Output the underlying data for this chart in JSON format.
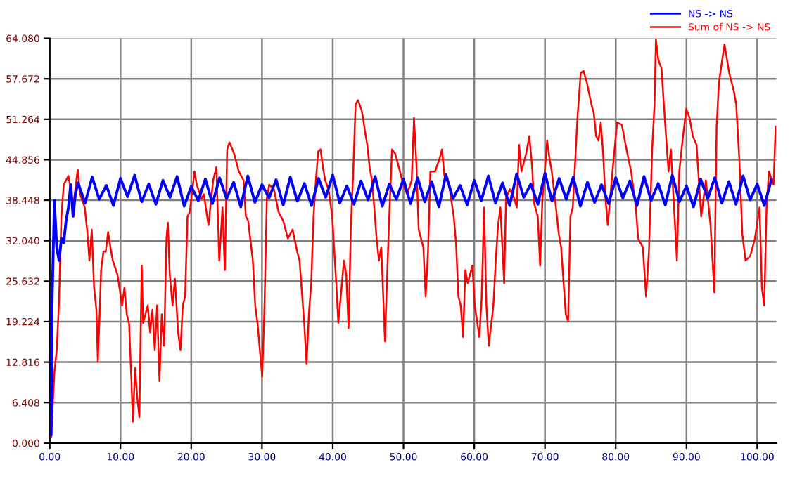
{
  "chart_data": {
    "type": "line",
    "xlim": [
      0,
      102.7
    ],
    "xticks": [
      {
        "value": 0,
        "label": "0.00"
      },
      {
        "value": 10,
        "label": "10.00"
      },
      {
        "value": 20,
        "label": "20.00"
      },
      {
        "value": 30,
        "label": "30.00"
      },
      {
        "value": 40,
        "label": "40.00"
      },
      {
        "value": 50,
        "label": "50.00"
      },
      {
        "value": 60,
        "label": "60.00"
      },
      {
        "value": 70,
        "label": "70.00"
      },
      {
        "value": 80,
        "label": "80.00"
      },
      {
        "value": 90,
        "label": "90.00"
      },
      {
        "value": 100,
        "label": "100.00"
      }
    ],
    "ylim": [
      0,
      64.08
    ],
    "yticks": [
      {
        "value": 0,
        "label": "0.000"
      },
      {
        "value": 6.408,
        "label": "6.408"
      },
      {
        "value": 12.816,
        "label": "12.816"
      },
      {
        "value": 19.224,
        "label": "19.224"
      },
      {
        "value": 25.632,
        "label": "25.632"
      },
      {
        "value": 32.04,
        "label": "32.040"
      },
      {
        "value": 38.448,
        "label": "38.448"
      },
      {
        "value": 44.856,
        "label": "44.856"
      },
      {
        "value": 51.264,
        "label": "51.264"
      },
      {
        "value": 57.672,
        "label": "57.672"
      },
      {
        "value": 64.08,
        "label": "64.080"
      }
    ],
    "grid": true,
    "legend": "top right",
    "series": [
      {
        "name": "NS -> NS",
        "color": "#0000ff",
        "x": [
          0.2,
          0.33,
          0.66,
          0.99,
          1.32,
          1.65,
          1.98,
          2.31,
          2.64,
          2.97,
          3.3,
          3.63,
          4,
          5,
          6,
          7,
          8,
          9,
          10,
          11,
          12,
          13,
          14,
          15,
          16,
          17,
          18,
          19,
          20,
          21,
          22,
          23,
          24,
          25,
          26,
          27,
          28,
          29,
          30,
          31,
          32,
          33,
          34,
          35,
          36,
          37,
          38,
          39,
          40,
          41,
          42,
          43,
          44,
          45,
          46,
          47,
          48,
          49,
          50,
          51,
          52,
          53,
          54,
          55,
          56,
          57,
          58,
          59,
          60,
          61,
          62,
          63,
          64,
          65,
          66,
          67,
          68,
          69,
          70,
          71,
          72,
          73,
          74,
          75,
          76,
          77,
          78,
          79,
          80,
          81,
          82,
          83,
          84,
          85,
          86,
          87,
          88,
          89,
          90,
          91,
          92,
          93,
          94,
          95,
          96,
          97,
          98,
          99,
          100,
          101,
          102
        ],
        "values": [
          1.3,
          21.8,
          38.4,
          31.0,
          28.9,
          32.4,
          31.7,
          35.2,
          37.3,
          40.9,
          35.9,
          39.4,
          41.2,
          38.0,
          42.1,
          38.6,
          40.8,
          37.6,
          41.9,
          39.0,
          42.4,
          38.2,
          41.0,
          37.8,
          41.6,
          38.9,
          42.2,
          37.5,
          40.6,
          38.4,
          41.8,
          37.9,
          42.0,
          38.7,
          41.3,
          37.4,
          42.3,
          38.1,
          40.9,
          38.8,
          41.7,
          37.7,
          42.1,
          38.3,
          41.1,
          37.6,
          41.9,
          38.9,
          42.4,
          38.0,
          40.7,
          37.8,
          41.5,
          38.5,
          42.2,
          37.5,
          41.0,
          38.6,
          41.8,
          37.9,
          42.0,
          38.2,
          41.4,
          37.4,
          42.5,
          38.7,
          40.8,
          37.7,
          41.6,
          38.4,
          42.3,
          38.0,
          41.2,
          37.6,
          42.6,
          38.9,
          41.0,
          37.8,
          42.7,
          38.3,
          41.9,
          38.6,
          42.1,
          37.5,
          41.3,
          38.1,
          40.9,
          37.9,
          42.0,
          38.8,
          41.5,
          37.6,
          42.2,
          38.4,
          41.1,
          37.7,
          42.4,
          38.2,
          40.7,
          37.4,
          41.8,
          38.7,
          42.0,
          38.0,
          41.4,
          37.8,
          42.3,
          38.5,
          41.0,
          37.6,
          41.7
        ]
      },
      {
        "name": "Sum of NS -> NS",
        "color": "#ff0000",
        "x": [
          0.2,
          0.66,
          0.99,
          1.32,
          1.65,
          1.98,
          2.64,
          2.97,
          3.3,
          3.96,
          4.29,
          4.95,
          5.28,
          5.61,
          5.94,
          6.27,
          6.6,
          6.8,
          7.06,
          7.26,
          7.59,
          7.92,
          8.25,
          8.58,
          8.91,
          9.57,
          10.23,
          10.56,
          10.89,
          11.22,
          11.55,
          11.75,
          12.08,
          12.34,
          12.67,
          13.0,
          13.2,
          13.53,
          13.86,
          14.19,
          14.52,
          14.85,
          15.18,
          15.51,
          15.84,
          16.17,
          16.5,
          16.7,
          16.96,
          17.36,
          17.69,
          18.15,
          18.48,
          18.81,
          19.14,
          19.47,
          19.8,
          20.46,
          20.79,
          21.45,
          21.78,
          22.44,
          23.1,
          23.56,
          23.96,
          24.42,
          24.75,
          25.08,
          25.41,
          26.07,
          26.73,
          27.39,
          27.72,
          28.05,
          28.71,
          29.04,
          29.37,
          29.7,
          30.03,
          30.36,
          30.69,
          31.02,
          31.68,
          32.34,
          33.0,
          33.66,
          34.32,
          34.98,
          35.31,
          35.97,
          36.3,
          36.63,
          36.96,
          37.29,
          37.62,
          37.95,
          38.28,
          38.61,
          38.94,
          39.4,
          39.93,
          40.46,
          40.79,
          41.25,
          41.58,
          41.91,
          42.24,
          42.57,
          42.9,
          43.23,
          43.56,
          44.03,
          44.29,
          44.55,
          44.88,
          45.21,
          45.54,
          45.87,
          46.2,
          46.53,
          46.86,
          47.19,
          47.39,
          47.72,
          47.99,
          48.38,
          48.84,
          49.5,
          49.97,
          50.5,
          51.16,
          51.49,
          51.82,
          52.15,
          52.81,
          53.14,
          53.47,
          53.8,
          54.46,
          55.12,
          55.45,
          55.78,
          56.44,
          57.1,
          57.43,
          57.76,
          58.09,
          58.42,
          58.75,
          59.08,
          59.74,
          60.07,
          60.73,
          61.06,
          61.39,
          61.72,
          62.05,
          62.71,
          63.04,
          63.37,
          63.7,
          64.23,
          64.49,
          65.02,
          65.68,
          66.01,
          66.34,
          66.67,
          67.33,
          67.79,
          68.19,
          68.45,
          68.98,
          69.31,
          69.64,
          69.97,
          70.3,
          70.63,
          70.96,
          71.62,
          71.95,
          72.28,
          72.94,
          73.27,
          73.6,
          73.93,
          74.59,
          75.05,
          75.45,
          75.91,
          76.57,
          76.9,
          77.23,
          77.56,
          77.89,
          78.22,
          78.55,
          78.88,
          79.54,
          80.2,
          80.86,
          81.52,
          82.18,
          82.84,
          83.17,
          83.83,
          84.29,
          84.69,
          85.15,
          85.48,
          85.68,
          86.01,
          86.47,
          86.8,
          87.46,
          87.79,
          88.45,
          88.65,
          88.98,
          89.44,
          89.97,
          90.43,
          90.89,
          91.42,
          92.08,
          92.74,
          93.4,
          93.93,
          94.26,
          94.59,
          95.05,
          95.38,
          96.04,
          96.7,
          97.03,
          97.49,
          97.89,
          98.35,
          99.01,
          99.67,
          100.33,
          100.66,
          100.99,
          101.32,
          101.65,
          102.31,
          102.6
        ],
        "values": [
          0.9,
          11.2,
          14.7,
          22.5,
          35.9,
          40.9,
          42.3,
          40.2,
          37.3,
          43.3,
          39.4,
          37.3,
          33.8,
          28.9,
          33.8,
          24.6,
          21.1,
          12.9,
          20.4,
          27.4,
          30.3,
          30.3,
          33.4,
          31.0,
          28.9,
          26.7,
          21.8,
          24.6,
          20.4,
          18.9,
          9.8,
          3.4,
          11.9,
          7.6,
          4.1,
          28.1,
          19.0,
          20.4,
          21.8,
          17.5,
          21.1,
          14.7,
          21.8,
          9.8,
          20.4,
          15.4,
          32.4,
          34.9,
          26.7,
          21.8,
          26.0,
          17.5,
          14.7,
          21.8,
          23.2,
          35.9,
          36.6,
          43.0,
          40.9,
          38.7,
          39.4,
          34.5,
          41.6,
          43.7,
          28.9,
          37.3,
          27.4,
          46.5,
          47.6,
          45.8,
          43.0,
          41.6,
          35.9,
          35.2,
          28.9,
          21.8,
          19.0,
          14.7,
          10.5,
          21.8,
          38.7,
          40.9,
          40.2,
          36.6,
          35.2,
          32.4,
          33.8,
          30.3,
          28.9,
          19.0,
          12.6,
          20.4,
          25.3,
          35.9,
          41.6,
          46.2,
          46.5,
          43.7,
          41.6,
          40.2,
          35.9,
          26.0,
          19.0,
          24.6,
          28.9,
          26.7,
          18.2,
          34.5,
          43.0,
          53.6,
          54.3,
          52.9,
          51.5,
          49.4,
          47.2,
          43.7,
          41.6,
          37.3,
          32.4,
          28.9,
          31.0,
          21.8,
          16.1,
          27.4,
          35.9,
          46.5,
          45.8,
          43.0,
          40.9,
          39.4,
          41.6,
          51.5,
          44.4,
          33.8,
          31.0,
          23.2,
          30.3,
          43.0,
          43.0,
          45.1,
          46.5,
          42.3,
          40.9,
          35.9,
          31.7,
          23.2,
          21.8,
          16.8,
          27.4,
          25.3,
          28.1,
          21.8,
          16.8,
          23.2,
          37.3,
          21.8,
          15.4,
          21.8,
          28.9,
          34.5,
          37.3,
          25.3,
          38.7,
          40.2,
          38.7,
          37.3,
          47.2,
          43.0,
          45.8,
          48.6,
          43.7,
          38.0,
          35.9,
          28.1,
          38.7,
          43.0,
          47.9,
          45.1,
          43.0,
          36.6,
          33.1,
          31.0,
          20.4,
          19.3,
          35.9,
          37.3,
          51.5,
          58.6,
          58.9,
          57.1,
          53.6,
          52.2,
          48.6,
          47.9,
          50.8,
          45.8,
          38.7,
          34.5,
          43.0,
          50.8,
          50.4,
          46.5,
          43.0,
          37.3,
          32.4,
          31.0,
          23.2,
          30.3,
          46.5,
          53.6,
          63.9,
          60.7,
          59.3,
          53.6,
          43.0,
          46.5,
          33.1,
          28.9,
          43.0,
          47.9,
          52.9,
          51.5,
          48.6,
          47.2,
          35.9,
          41.6,
          34.5,
          23.9,
          50.1,
          57.1,
          60.7,
          63.1,
          58.6,
          55.7,
          53.6,
          44.4,
          33.1,
          28.9,
          29.6,
          32.4,
          37.3,
          24.6,
          21.8,
          37.3,
          43.0,
          40.9,
          50.1
        ]
      }
    ]
  }
}
